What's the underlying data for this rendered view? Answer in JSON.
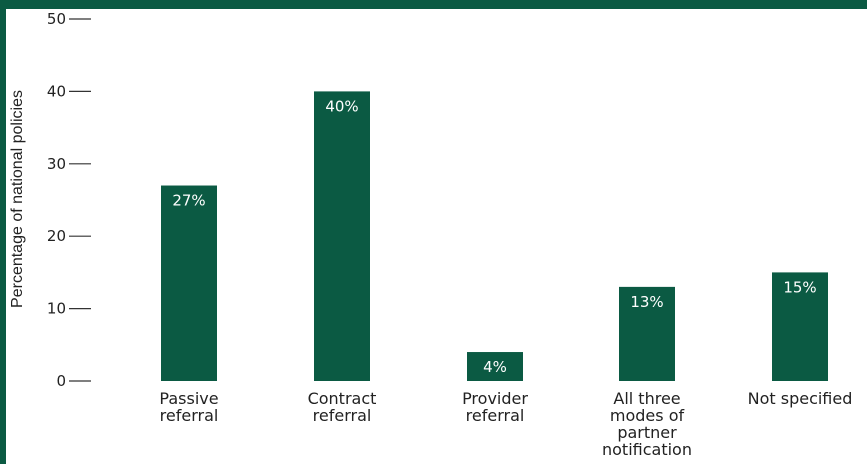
{
  "chart_data": {
    "type": "bar",
    "title": "",
    "xlabel": "",
    "ylabel": "Percentage of national policies",
    "ylim": [
      0,
      50
    ],
    "yticks": [
      0,
      10,
      20,
      30,
      40,
      50
    ],
    "categories": [
      [
        "Passive",
        "referral"
      ],
      [
        "Contract",
        "referral"
      ],
      [
        "Provider",
        "referral"
      ],
      [
        "All three",
        "modes of",
        "partner",
        "notification"
      ],
      [
        "Not specified"
      ]
    ],
    "values": [
      27,
      40,
      4,
      13,
      15
    ],
    "data_labels": [
      "27%",
      "40%",
      "4%",
      "13%",
      "15%"
    ],
    "bar_color": "#0b5a43",
    "frame_color": "#0b5a43",
    "grid": false
  }
}
